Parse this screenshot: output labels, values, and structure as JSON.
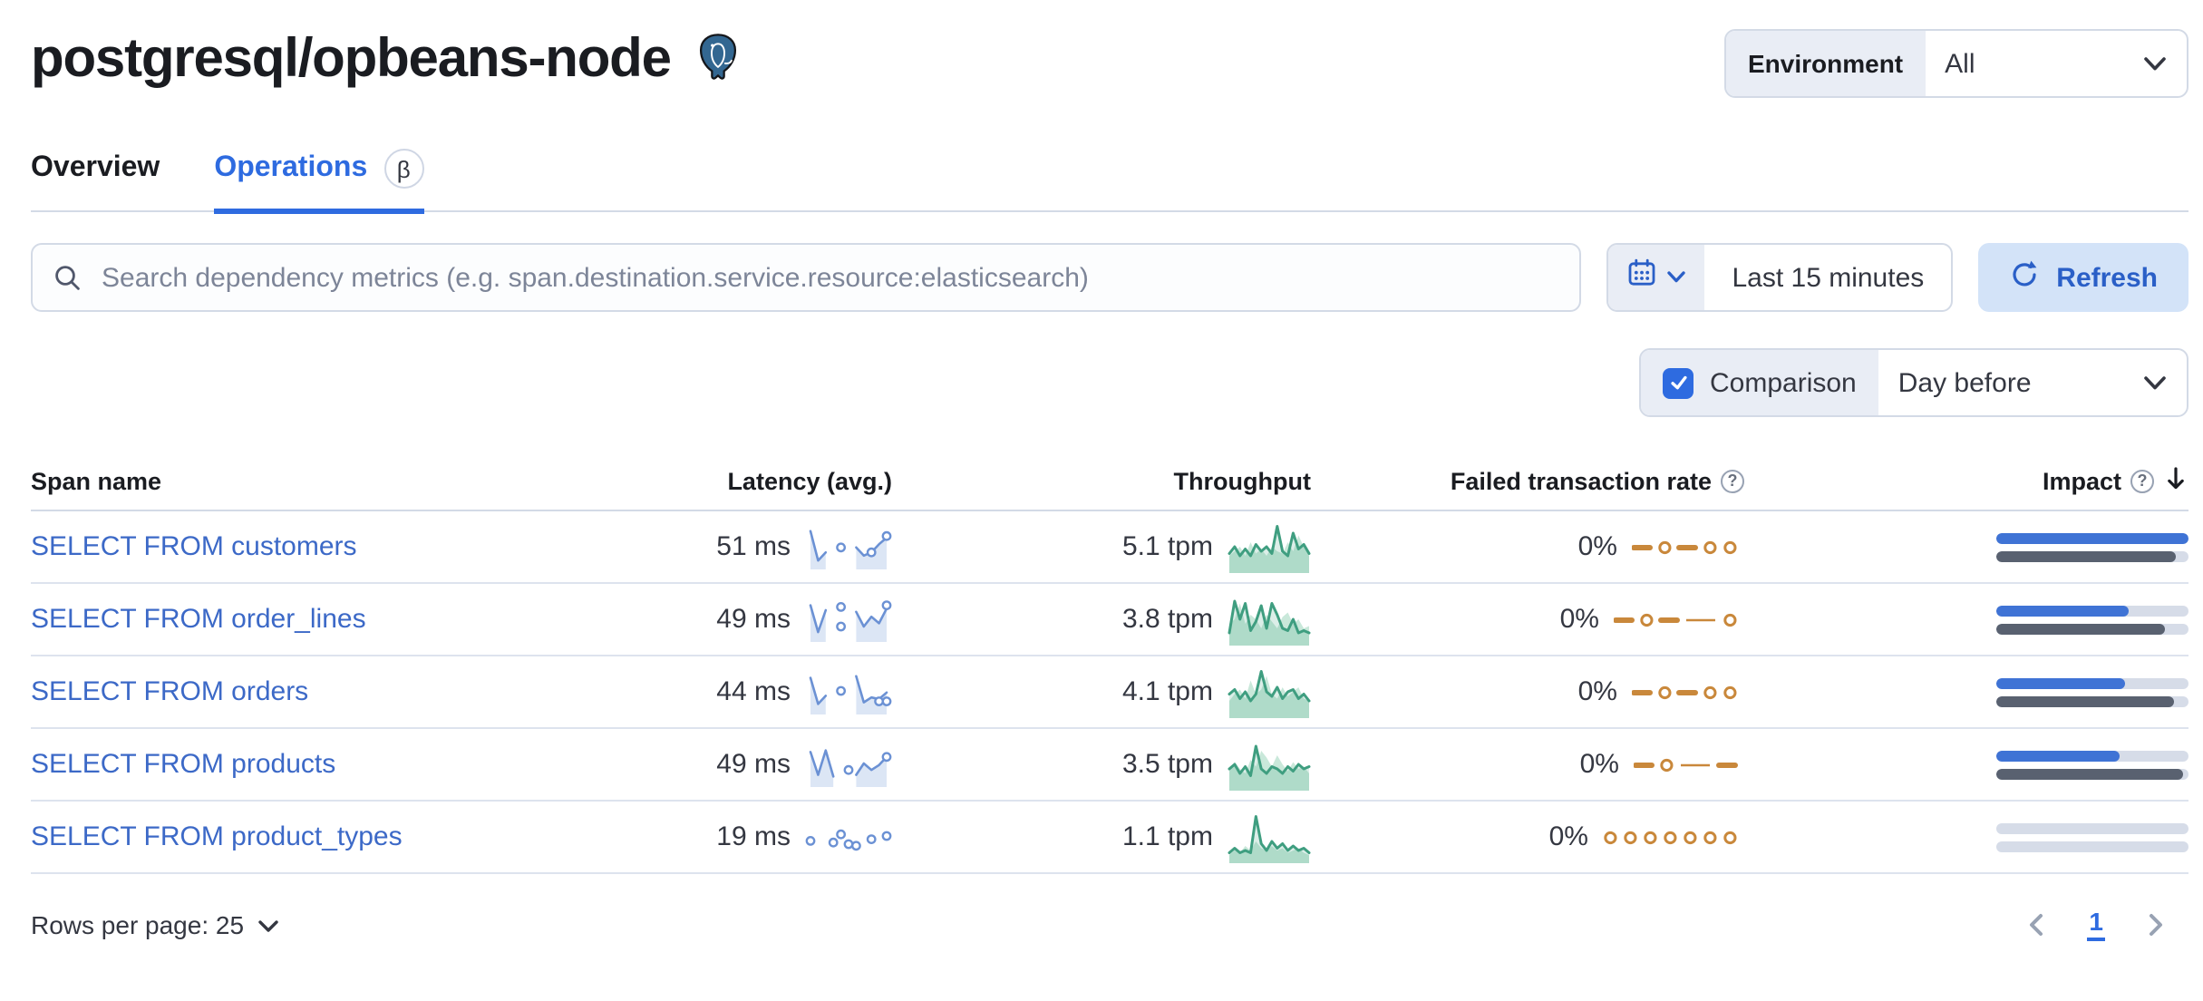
{
  "header": {
    "title": "postgresql/opbeans-node",
    "icon": "postgresql-elephant",
    "environment": {
      "label": "Environment",
      "value": "All"
    }
  },
  "tabs": [
    {
      "label": "Overview",
      "active": false
    },
    {
      "label": "Operations",
      "active": true,
      "badge": "β"
    }
  ],
  "controls": {
    "search_placeholder": "Search dependency metrics (e.g. span.destination.service.resource:elasticsearch)",
    "time_range": "Last 15 minutes",
    "refresh_label": "Refresh",
    "comparison_label": "Comparison",
    "comparison_checked": true,
    "comparison_value": "Day before"
  },
  "table": {
    "headers": {
      "span_name": "Span name",
      "latency": "Latency (avg.)",
      "throughput": "Throughput",
      "failed_rate": "Failed transaction rate",
      "impact": "Impact"
    },
    "rows": [
      {
        "span_name": "SELECT FROM customers",
        "latency": "51 ms",
        "throughput": "5.1 tpm",
        "failed_rate": "0%",
        "latency_spark": {
          "line": [
            0.95,
            0.05,
            0.3,
            null,
            null,
            null,
            0.45,
            0.2,
            0.3,
            0.55,
            0.75
          ],
          "dots": [
            [
              4,
              0.45
            ],
            [
              8,
              0.3
            ],
            [
              10,
              0.8
            ]
          ]
        },
        "throughput_spark": {
          "current": [
            0.35,
            0.5,
            0.3,
            0.45,
            0.3,
            0.55,
            0.4,
            0.5,
            0.35,
            0.95,
            0.4,
            0.3,
            0.8,
            0.45,
            0.55,
            0.35
          ],
          "previous": [
            0.3,
            0.4,
            0.5,
            0.3,
            0.6,
            0.35,
            0.45,
            0.3,
            0.5,
            0.4,
            0.35,
            0.6,
            0.4,
            0.75,
            0.5,
            0.3
          ]
        },
        "failed_spark": [
          "dash",
          "circle",
          "dash",
          "circle",
          "circle"
        ],
        "impact": 1.0,
        "impact_previous": 0.93
      },
      {
        "span_name": "SELECT FROM order_lines",
        "latency": "49 ms",
        "throughput": "3.8 tpm",
        "failed_rate": "0%",
        "latency_spark": {
          "line": [
            0.9,
            0.08,
            0.75,
            null,
            null,
            null,
            0.7,
            0.25,
            0.55,
            0.35,
            0.8
          ],
          "dots": [
            [
              4,
              0.85
            ],
            [
              4,
              0.25
            ],
            [
              10,
              0.9
            ]
          ]
        },
        "throughput_spark": {
          "current": [
            0.2,
            0.9,
            0.5,
            0.85,
            0.25,
            0.45,
            0.8,
            0.3,
            0.85,
            0.6,
            0.3,
            0.25,
            0.5,
            0.2,
            0.25,
            0.2
          ],
          "previous": [
            0.4,
            0.5,
            0.85,
            0.4,
            0.6,
            0.5,
            0.3,
            0.6,
            0.45,
            0.3,
            0.55,
            0.65,
            0.4,
            0.5,
            0.3,
            0.35
          ]
        },
        "failed_spark": [
          "dash",
          "circle",
          "dash",
          "thin",
          "circle"
        ],
        "impact": 0.69,
        "impact_previous": 0.88
      },
      {
        "span_name": "SELECT FROM orders",
        "latency": "44 ms",
        "throughput": "4.1 tpm",
        "failed_rate": "0%",
        "latency_spark": {
          "line": [
            0.9,
            0.1,
            0.35,
            null,
            null,
            null,
            0.95,
            0.15,
            0.3,
            0.25,
            0.45
          ],
          "dots": [
            [
              4,
              0.5
            ],
            [
              9,
              0.18
            ],
            [
              10,
              0.18
            ]
          ]
        },
        "throughput_spark": {
          "current": [
            0.45,
            0.55,
            0.35,
            0.5,
            0.3,
            0.45,
            0.95,
            0.5,
            0.4,
            0.6,
            0.35,
            0.5,
            0.55,
            0.35,
            0.45,
            0.3
          ],
          "previous": [
            0.3,
            0.45,
            0.55,
            0.35,
            0.75,
            0.45,
            0.55,
            0.85,
            0.45,
            0.35,
            0.6,
            0.4,
            0.5,
            0.6,
            0.35,
            0.3
          ]
        },
        "failed_spark": [
          "dash",
          "circle",
          "dash",
          "circle",
          "circle"
        ],
        "impact": 0.67,
        "impact_previous": 0.92
      },
      {
        "span_name": "SELECT FROM products",
        "latency": "49 ms",
        "throughput": "3.5 tpm",
        "failed_rate": "0%",
        "latency_spark": {
          "line": [
            0.85,
            0.15,
            0.9,
            0.1,
            null,
            null,
            0.15,
            0.5,
            0.3,
            0.45,
            0.7
          ],
          "dots": [
            [
              5,
              0.3
            ],
            [
              10,
              0.7
            ]
          ]
        },
        "throughput_spark": {
          "current": [
            0.4,
            0.5,
            0.3,
            0.45,
            0.25,
            0.9,
            0.4,
            0.3,
            0.45,
            0.4,
            0.3,
            0.45,
            0.35,
            0.5,
            0.4,
            0.45
          ],
          "previous": [
            0.35,
            0.55,
            0.4,
            0.3,
            0.6,
            0.45,
            0.8,
            0.65,
            0.45,
            0.7,
            0.5,
            0.35,
            0.55,
            0.4,
            0.45,
            0.3
          ]
        },
        "failed_spark": [
          "dash",
          "circle",
          "thin",
          "dash"
        ],
        "impact": 0.64,
        "impact_previous": 0.97
      },
      {
        "span_name": "SELECT FROM product_types",
        "latency": "19 ms",
        "throughput": "1.1 tpm",
        "failed_rate": "0%",
        "latency_spark": {
          "line": [],
          "dots": [
            [
              0,
              0.35
            ],
            [
              3,
              0.3
            ],
            [
              4,
              0.55
            ],
            [
              5,
              0.25
            ],
            [
              6,
              0.2
            ],
            [
              8,
              0.4
            ],
            [
              10,
              0.5
            ]
          ]
        },
        "throughput_spark": {
          "current": [
            0.15,
            0.25,
            0.15,
            0.2,
            0.15,
            0.95,
            0.35,
            0.2,
            0.4,
            0.25,
            0.35,
            0.2,
            0.3,
            0.2,
            0.25,
            0.15
          ],
          "previous": [
            0.1,
            0.2,
            0.15,
            0.3,
            0.2,
            0.4,
            0.25,
            0.2,
            0.3,
            0.2,
            0.25,
            0.15,
            0.2,
            0.25,
            0.15,
            0.1
          ]
        },
        "failed_spark": [
          "circle",
          "circle",
          "circle",
          "circle",
          "circle",
          "circle",
          "circle"
        ],
        "impact": 0.0,
        "impact_previous": 0.0
      }
    ]
  },
  "pagination": {
    "rows_per_page": "Rows per page: 25",
    "page": "1"
  },
  "colors": {
    "primary": "#2e6be0",
    "link": "#3c69c7",
    "refresh_bg": "#d3e3f8",
    "form_prepend_bg": "#e9edf5",
    "border": "#d3dae6",
    "latency_line": "#6b91d4",
    "latency_fill": "#dce6f5",
    "throughput_line": "#3f9e80",
    "throughput_prev_fill": "#c9e8da",
    "failed_rate": "#c9883b",
    "impact_bar": "#3f73d5",
    "impact_bar_previous": "#596170",
    "impact_track": "#d6dce8"
  }
}
